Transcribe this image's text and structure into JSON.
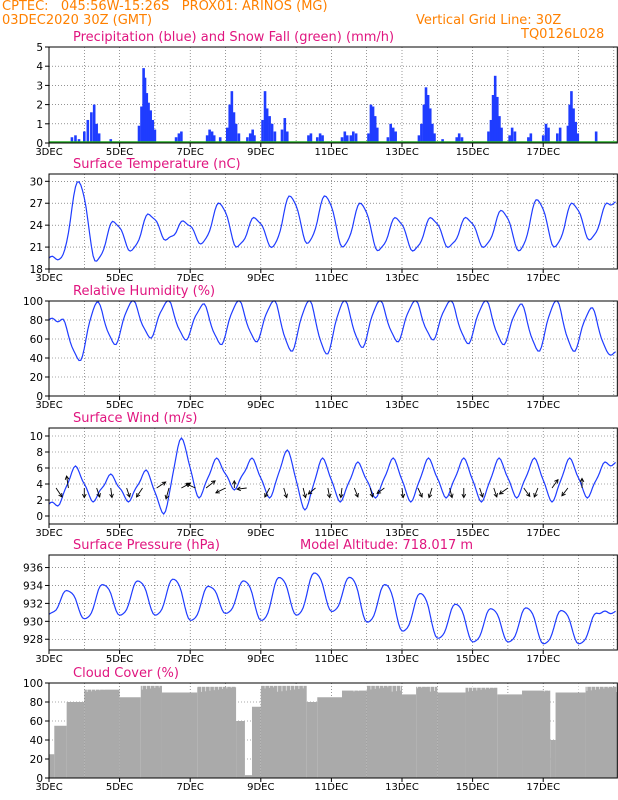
{
  "header": {
    "line1": "CPTEC:   045:56W-15:26S   PROX01: ARINOS (MG)",
    "line2_left": "03DEC2020 30Z (GMT)",
    "line2_right": "Vertical Grid Line: 30Z",
    "line3_right": "TQ0126L028"
  },
  "colors": {
    "header": "#ff8000",
    "title": "#e0157f",
    "line": "#1f3cff",
    "snow": "#22aa22",
    "cloud": "#aaaaaa"
  },
  "chart_data": [
    {
      "id": "precip",
      "type": "bar",
      "title": "Precipitation (blue) and Snow Fall (green) (mm/h)",
      "ylim": [
        0,
        5
      ],
      "yticks": [
        0,
        1,
        2,
        3,
        4,
        5
      ],
      "x_ticks": [
        "3DEC",
        "5DEC",
        "7DEC",
        "9DEC",
        "11DEC",
        "13DEC",
        "15DEC",
        "17DEC"
      ],
      "x_days_from_3dec": [
        0,
        2,
        4,
        6,
        8,
        10,
        12,
        14
      ],
      "x_range_days": [
        0,
        16.1
      ],
      "bars": [
        {
          "day": 0.65,
          "v": 0.3
        },
        {
          "day": 0.75,
          "v": 0.4
        },
        {
          "day": 0.85,
          "v": 0.2
        },
        {
          "day": 1.0,
          "v": 0.6
        },
        {
          "day": 1.1,
          "v": 1.2
        },
        {
          "day": 1.2,
          "v": 1.6
        },
        {
          "day": 1.28,
          "v": 2.0
        },
        {
          "day": 1.35,
          "v": 1.0
        },
        {
          "day": 1.42,
          "v": 0.5
        },
        {
          "day": 1.75,
          "v": 0.2
        },
        {
          "day": 2.55,
          "v": 0.9
        },
        {
          "day": 2.62,
          "v": 1.9
        },
        {
          "day": 2.68,
          "v": 3.9
        },
        {
          "day": 2.72,
          "v": 3.4
        },
        {
          "day": 2.77,
          "v": 2.6
        },
        {
          "day": 2.82,
          "v": 2.1
        },
        {
          "day": 2.88,
          "v": 1.7
        },
        {
          "day": 2.94,
          "v": 1.2
        },
        {
          "day": 3.0,
          "v": 0.7
        },
        {
          "day": 3.6,
          "v": 0.3
        },
        {
          "day": 3.68,
          "v": 0.5
        },
        {
          "day": 3.75,
          "v": 0.6
        },
        {
          "day": 4.48,
          "v": 0.4
        },
        {
          "day": 4.55,
          "v": 0.7
        },
        {
          "day": 4.62,
          "v": 0.6
        },
        {
          "day": 4.68,
          "v": 0.4
        },
        {
          "day": 4.85,
          "v": 0.3
        },
        {
          "day": 5.05,
          "v": 0.8
        },
        {
          "day": 5.12,
          "v": 2.0
        },
        {
          "day": 5.18,
          "v": 2.7
        },
        {
          "day": 5.24,
          "v": 1.6
        },
        {
          "day": 5.3,
          "v": 1.0
        },
        {
          "day": 5.38,
          "v": 0.5
        },
        {
          "day": 5.62,
          "v": 0.3
        },
        {
          "day": 5.7,
          "v": 0.5
        },
        {
          "day": 5.77,
          "v": 0.7
        },
        {
          "day": 5.82,
          "v": 0.4
        },
        {
          "day": 6.05,
          "v": 1.2
        },
        {
          "day": 6.12,
          "v": 2.7
        },
        {
          "day": 6.18,
          "v": 1.8
        },
        {
          "day": 6.25,
          "v": 1.4
        },
        {
          "day": 6.32,
          "v": 1.0
        },
        {
          "day": 6.4,
          "v": 0.6
        },
        {
          "day": 6.6,
          "v": 0.7
        },
        {
          "day": 6.68,
          "v": 1.3
        },
        {
          "day": 6.75,
          "v": 0.6
        },
        {
          "day": 7.35,
          "v": 0.4
        },
        {
          "day": 7.42,
          "v": 0.5
        },
        {
          "day": 7.6,
          "v": 0.3
        },
        {
          "day": 7.68,
          "v": 0.5
        },
        {
          "day": 7.75,
          "v": 0.4
        },
        {
          "day": 8.3,
          "v": 0.3
        },
        {
          "day": 8.38,
          "v": 0.6
        },
        {
          "day": 8.45,
          "v": 0.4
        },
        {
          "day": 8.55,
          "v": 0.4
        },
        {
          "day": 8.62,
          "v": 0.6
        },
        {
          "day": 8.7,
          "v": 0.5
        },
        {
          "day": 9.05,
          "v": 0.5
        },
        {
          "day": 9.12,
          "v": 2.0
        },
        {
          "day": 9.18,
          "v": 1.9
        },
        {
          "day": 9.24,
          "v": 1.4
        },
        {
          "day": 9.3,
          "v": 0.8
        },
        {
          "day": 9.6,
          "v": 0.3
        },
        {
          "day": 9.68,
          "v": 1.0
        },
        {
          "day": 9.75,
          "v": 0.8
        },
        {
          "day": 9.82,
          "v": 0.6
        },
        {
          "day": 10.48,
          "v": 0.4
        },
        {
          "day": 10.55,
          "v": 1.0
        },
        {
          "day": 10.62,
          "v": 2.0
        },
        {
          "day": 10.68,
          "v": 2.9
        },
        {
          "day": 10.74,
          "v": 2.5
        },
        {
          "day": 10.8,
          "v": 1.8
        },
        {
          "day": 10.86,
          "v": 1.0
        },
        {
          "day": 10.92,
          "v": 0.5
        },
        {
          "day": 11.15,
          "v": 0.2
        },
        {
          "day": 11.55,
          "v": 0.3
        },
        {
          "day": 11.62,
          "v": 0.5
        },
        {
          "day": 11.7,
          "v": 0.3
        },
        {
          "day": 12.45,
          "v": 0.6
        },
        {
          "day": 12.52,
          "v": 1.2
        },
        {
          "day": 12.58,
          "v": 2.5
        },
        {
          "day": 12.64,
          "v": 3.5
        },
        {
          "day": 12.7,
          "v": 2.4
        },
        {
          "day": 12.76,
          "v": 1.4
        },
        {
          "day": 12.82,
          "v": 0.8
        },
        {
          "day": 13.05,
          "v": 0.4
        },
        {
          "day": 13.12,
          "v": 0.8
        },
        {
          "day": 13.2,
          "v": 0.6
        },
        {
          "day": 13.58,
          "v": 0.3
        },
        {
          "day": 13.65,
          "v": 0.5
        },
        {
          "day": 14.0,
          "v": 0.4
        },
        {
          "day": 14.08,
          "v": 1.0
        },
        {
          "day": 14.15,
          "v": 0.8
        },
        {
          "day": 14.4,
          "v": 0.5
        },
        {
          "day": 14.48,
          "v": 0.8
        },
        {
          "day": 14.7,
          "v": 0.9
        },
        {
          "day": 14.75,
          "v": 2.0
        },
        {
          "day": 14.8,
          "v": 2.7
        },
        {
          "day": 14.86,
          "v": 1.8
        },
        {
          "day": 14.92,
          "v": 1.1
        },
        {
          "day": 14.98,
          "v": 0.5
        },
        {
          "day": 15.5,
          "v": 0.6
        }
      ]
    },
    {
      "id": "temp",
      "type": "line",
      "title": "Surface Temperature (nC)",
      "ylim": [
        18,
        31
      ],
      "yticks": [
        18,
        21,
        24,
        27,
        30
      ],
      "x_ticks": [
        "3DEC",
        "5DEC",
        "7DEC",
        "9DEC",
        "11DEC",
        "13DEC",
        "15DEC",
        "17DEC"
      ],
      "x_days_from_3dec": [
        0,
        2,
        4,
        6,
        8,
        10,
        12,
        14
      ],
      "x_range_days": [
        0,
        16.1
      ],
      "daily": [
        {
          "max": 30.0,
          "min": 19.5
        },
        {
          "max": 24.5,
          "min": 19.0
        },
        {
          "max": 25.5,
          "min": 20.5
        },
        {
          "max": 24.5,
          "min": 22.0
        },
        {
          "max": 27.0,
          "min": 21.5
        },
        {
          "max": 25.0,
          "min": 21.0
        },
        {
          "max": 28.0,
          "min": 21.0
        },
        {
          "max": 28.0,
          "min": 21.5
        },
        {
          "max": 27.0,
          "min": 21.0
        },
        {
          "max": 25.0,
          "min": 20.5
        },
        {
          "max": 25.0,
          "min": 20.5
        },
        {
          "max": 25.0,
          "min": 21.0
        },
        {
          "max": 26.0,
          "min": 21.0
        },
        {
          "max": 27.5,
          "min": 20.5
        },
        {
          "max": 27.0,
          "min": 21.0
        },
        {
          "max": 27.0,
          "min": 22.0
        }
      ]
    },
    {
      "id": "rh",
      "type": "line",
      "title": "Relative Humidity (%)",
      "ylim": [
        0,
        100
      ],
      "yticks": [
        0,
        20,
        40,
        60,
        80,
        100
      ],
      "x_ticks": [
        "3DEC",
        "5DEC",
        "7DEC",
        "9DEC",
        "11DEC",
        "13DEC",
        "15DEC",
        "17DEC"
      ],
      "x_days_from_3dec": [
        0,
        2,
        4,
        6,
        8,
        10,
        12,
        14
      ],
      "x_range_days": [
        0,
        16.1
      ],
      "daily": [
        {
          "max": 80,
          "min": 38
        },
        {
          "max": 98,
          "min": 55
        },
        {
          "max": 100,
          "min": 62
        },
        {
          "max": 100,
          "min": 60
        },
        {
          "max": 96,
          "min": 55
        },
        {
          "max": 100,
          "min": 58
        },
        {
          "max": 100,
          "min": 48
        },
        {
          "max": 100,
          "min": 45
        },
        {
          "max": 100,
          "min": 52
        },
        {
          "max": 100,
          "min": 58
        },
        {
          "max": 100,
          "min": 60
        },
        {
          "max": 100,
          "min": 56
        },
        {
          "max": 100,
          "min": 55
        },
        {
          "max": 96,
          "min": 48
        },
        {
          "max": 100,
          "min": 48
        },
        {
          "max": 92,
          "min": 45
        }
      ]
    },
    {
      "id": "wind",
      "type": "line",
      "title": "Surface Wind (m/s)",
      "ylim": [
        -1,
        11
      ],
      "yticks": [
        0,
        2,
        4,
        6,
        8,
        10
      ],
      "x_ticks": [
        "3DEC",
        "5DEC",
        "7DEC",
        "9DEC",
        "11DEC",
        "13DEC",
        "15DEC",
        "17DEC"
      ],
      "x_days_from_3dec": [
        0,
        2,
        4,
        6,
        8,
        10,
        12,
        14
      ],
      "x_range_days": [
        0,
        16.1
      ],
      "daily": [
        {
          "max": 6.0,
          "min": 1.5
        },
        {
          "max": 5.0,
          "min": 2.0
        },
        {
          "max": 5.5,
          "min": 2.0
        },
        {
          "max": 9.5,
          "min": 0.5
        },
        {
          "max": 7.0,
          "min": 2.5
        },
        {
          "max": 7.0,
          "min": 3.5
        },
        {
          "max": 8.0,
          "min": 2.5
        },
        {
          "max": 7.0,
          "min": 1.0
        },
        {
          "max": 6.5,
          "min": 2.0
        },
        {
          "max": 7.0,
          "min": 2.5
        },
        {
          "max": 7.0,
          "min": 2.0
        },
        {
          "max": 7.0,
          "min": 2.5
        },
        {
          "max": 7.0,
          "min": 2.0
        },
        {
          "max": 7.0,
          "min": 2.5
        },
        {
          "max": 7.0,
          "min": 2.0
        },
        {
          "max": 6.5,
          "min": 2.5
        }
      ],
      "arrows": [
        {
          "day": 0.2,
          "u": 1,
          "v": -1.5
        },
        {
          "day": 0.55,
          "u": -0.3,
          "v": 2
        },
        {
          "day": 1.0,
          "u": 0,
          "v": -1.6
        },
        {
          "day": 1.35,
          "u": 0.5,
          "v": -1.5
        },
        {
          "day": 1.75,
          "u": 0.2,
          "v": -1.6
        },
        {
          "day": 2.2,
          "u": 0.5,
          "v": -1.5
        },
        {
          "day": 2.65,
          "u": -1,
          "v": -1.5
        },
        {
          "day": 3.05,
          "u": 1.5,
          "v": 1
        },
        {
          "day": 3.4,
          "u": -0.5,
          "v": -1.8
        },
        {
          "day": 3.75,
          "u": 1.5,
          "v": 0.8
        },
        {
          "day": 4.15,
          "u": -1.6,
          "v": 0.7
        },
        {
          "day": 4.45,
          "u": 1.5,
          "v": 1.2
        },
        {
          "day": 5.0,
          "u": -1.6,
          "v": -0.8
        },
        {
          "day": 5.25,
          "u": 0,
          "v": 1.2
        },
        {
          "day": 5.6,
          "u": -1.6,
          "v": -0.2
        },
        {
          "day": 6.25,
          "u": -0.8,
          "v": -1.5
        },
        {
          "day": 6.65,
          "u": 0.5,
          "v": -1.6
        },
        {
          "day": 7.2,
          "u": 0.4,
          "v": -1.6
        },
        {
          "day": 7.55,
          "u": -1.2,
          "v": -1
        },
        {
          "day": 7.9,
          "u": 0.3,
          "v": -1.6
        },
        {
          "day": 8.3,
          "u": -0.2,
          "v": -1.6
        },
        {
          "day": 8.65,
          "u": 0.6,
          "v": -1.5
        },
        {
          "day": 9.1,
          "u": 0.4,
          "v": -1.5
        },
        {
          "day": 9.5,
          "u": -1.2,
          "v": -0.9
        },
        {
          "day": 10.0,
          "u": 0.2,
          "v": -1.6
        },
        {
          "day": 10.45,
          "u": 0.7,
          "v": -1.5
        },
        {
          "day": 10.85,
          "u": -0.5,
          "v": -1.6
        },
        {
          "day": 11.35,
          "u": 0.4,
          "v": -1.6
        },
        {
          "day": 11.75,
          "u": 0,
          "v": -1.6
        },
        {
          "day": 12.2,
          "u": 0.5,
          "v": -1.5
        },
        {
          "day": 12.6,
          "u": 0.5,
          "v": -1.5
        },
        {
          "day": 13.0,
          "u": -1.4,
          "v": -1
        },
        {
          "day": 13.45,
          "u": 1,
          "v": -1.4
        },
        {
          "day": 13.85,
          "u": -0.6,
          "v": -1.5
        },
        {
          "day": 14.25,
          "u": 1,
          "v": 1.4
        },
        {
          "day": 14.7,
          "u": -1,
          "v": -1.3
        },
        {
          "day": 15.1,
          "u": 0,
          "v": 1.6
        }
      ]
    },
    {
      "id": "pres",
      "type": "line",
      "title": "Surface Pressure (hPa)",
      "subtitle": "Model Altitude: 718.017 m",
      "ylim": [
        926.8,
        937.4
      ],
      "yticks": [
        928,
        930,
        932,
        934,
        936
      ],
      "x_ticks": [
        "3DEC",
        "5DEC",
        "7DEC",
        "9DEC",
        "11DEC",
        "13DEC",
        "15DEC",
        "17DEC"
      ],
      "x_days_from_3dec": [
        0,
        2,
        4,
        6,
        8,
        10,
        12,
        14
      ],
      "x_range_days": [
        0,
        16.1
      ],
      "daily": [
        {
          "max": 933.5,
          "min": 930.8
        },
        {
          "max": 934.2,
          "min": 930.2
        },
        {
          "max": 934.6,
          "min": 930.6
        },
        {
          "max": 934.8,
          "min": 930.6
        },
        {
          "max": 934.0,
          "min": 930.0
        },
        {
          "max": 934.6,
          "min": 930.8
        },
        {
          "max": 935.0,
          "min": 930.0
        },
        {
          "max": 935.5,
          "min": 930.6
        },
        {
          "max": 935.0,
          "min": 931.0
        },
        {
          "max": 934.2,
          "min": 929.8
        },
        {
          "max": 933.2,
          "min": 928.8
        },
        {
          "max": 932.0,
          "min": 928.0
        },
        {
          "max": 931.5,
          "min": 927.6
        },
        {
          "max": 931.6,
          "min": 927.6
        },
        {
          "max": 931.3,
          "min": 927.4
        },
        {
          "max": 931.0,
          "min": 927.4
        }
      ]
    },
    {
      "id": "cloud",
      "type": "bar",
      "title": "Cloud Cover (%)",
      "ylim": [
        0,
        100
      ],
      "yticks": [
        0,
        20,
        40,
        60,
        80,
        100
      ],
      "x_ticks": [
        "3DEC",
        "5DEC",
        "7DEC",
        "9DEC",
        "11DEC",
        "13DEC",
        "15DEC",
        "17DEC"
      ],
      "x_days_from_3dec": [
        0,
        2,
        4,
        6,
        8,
        10,
        12,
        14
      ],
      "x_range_days": [
        0,
        16.1
      ],
      "segments": [
        {
          "from": 0.0,
          "to": 0.15,
          "v": 25
        },
        {
          "from": 0.15,
          "to": 0.5,
          "v": 55
        },
        {
          "from": 0.5,
          "to": 1.0,
          "v": 80
        },
        {
          "from": 1.0,
          "to": 2.0,
          "v": 93
        },
        {
          "from": 2.0,
          "to": 2.6,
          "v": 85
        },
        {
          "from": 2.6,
          "to": 3.2,
          "v": 97
        },
        {
          "from": 3.2,
          "to": 4.2,
          "v": 90
        },
        {
          "from": 4.2,
          "to": 5.3,
          "v": 96
        },
        {
          "from": 5.3,
          "to": 5.55,
          "v": 60
        },
        {
          "from": 5.55,
          "to": 5.75,
          "v": 3
        },
        {
          "from": 5.75,
          "to": 6.0,
          "v": 75
        },
        {
          "from": 6.0,
          "to": 7.3,
          "v": 97
        },
        {
          "from": 7.3,
          "to": 7.6,
          "v": 80
        },
        {
          "from": 7.6,
          "to": 8.3,
          "v": 85
        },
        {
          "from": 8.3,
          "to": 9.0,
          "v": 92
        },
        {
          "from": 9.0,
          "to": 10.0,
          "v": 97
        },
        {
          "from": 10.0,
          "to": 10.4,
          "v": 88
        },
        {
          "from": 10.4,
          "to": 11.0,
          "v": 96
        },
        {
          "from": 11.0,
          "to": 11.8,
          "v": 90
        },
        {
          "from": 11.8,
          "to": 12.7,
          "v": 95
        },
        {
          "from": 12.7,
          "to": 13.4,
          "v": 88
        },
        {
          "from": 13.4,
          "to": 14.2,
          "v": 92
        },
        {
          "from": 14.2,
          "to": 14.35,
          "v": 40
        },
        {
          "from": 14.35,
          "to": 15.2,
          "v": 90
        },
        {
          "from": 15.2,
          "to": 16.1,
          "v": 96
        }
      ]
    }
  ]
}
